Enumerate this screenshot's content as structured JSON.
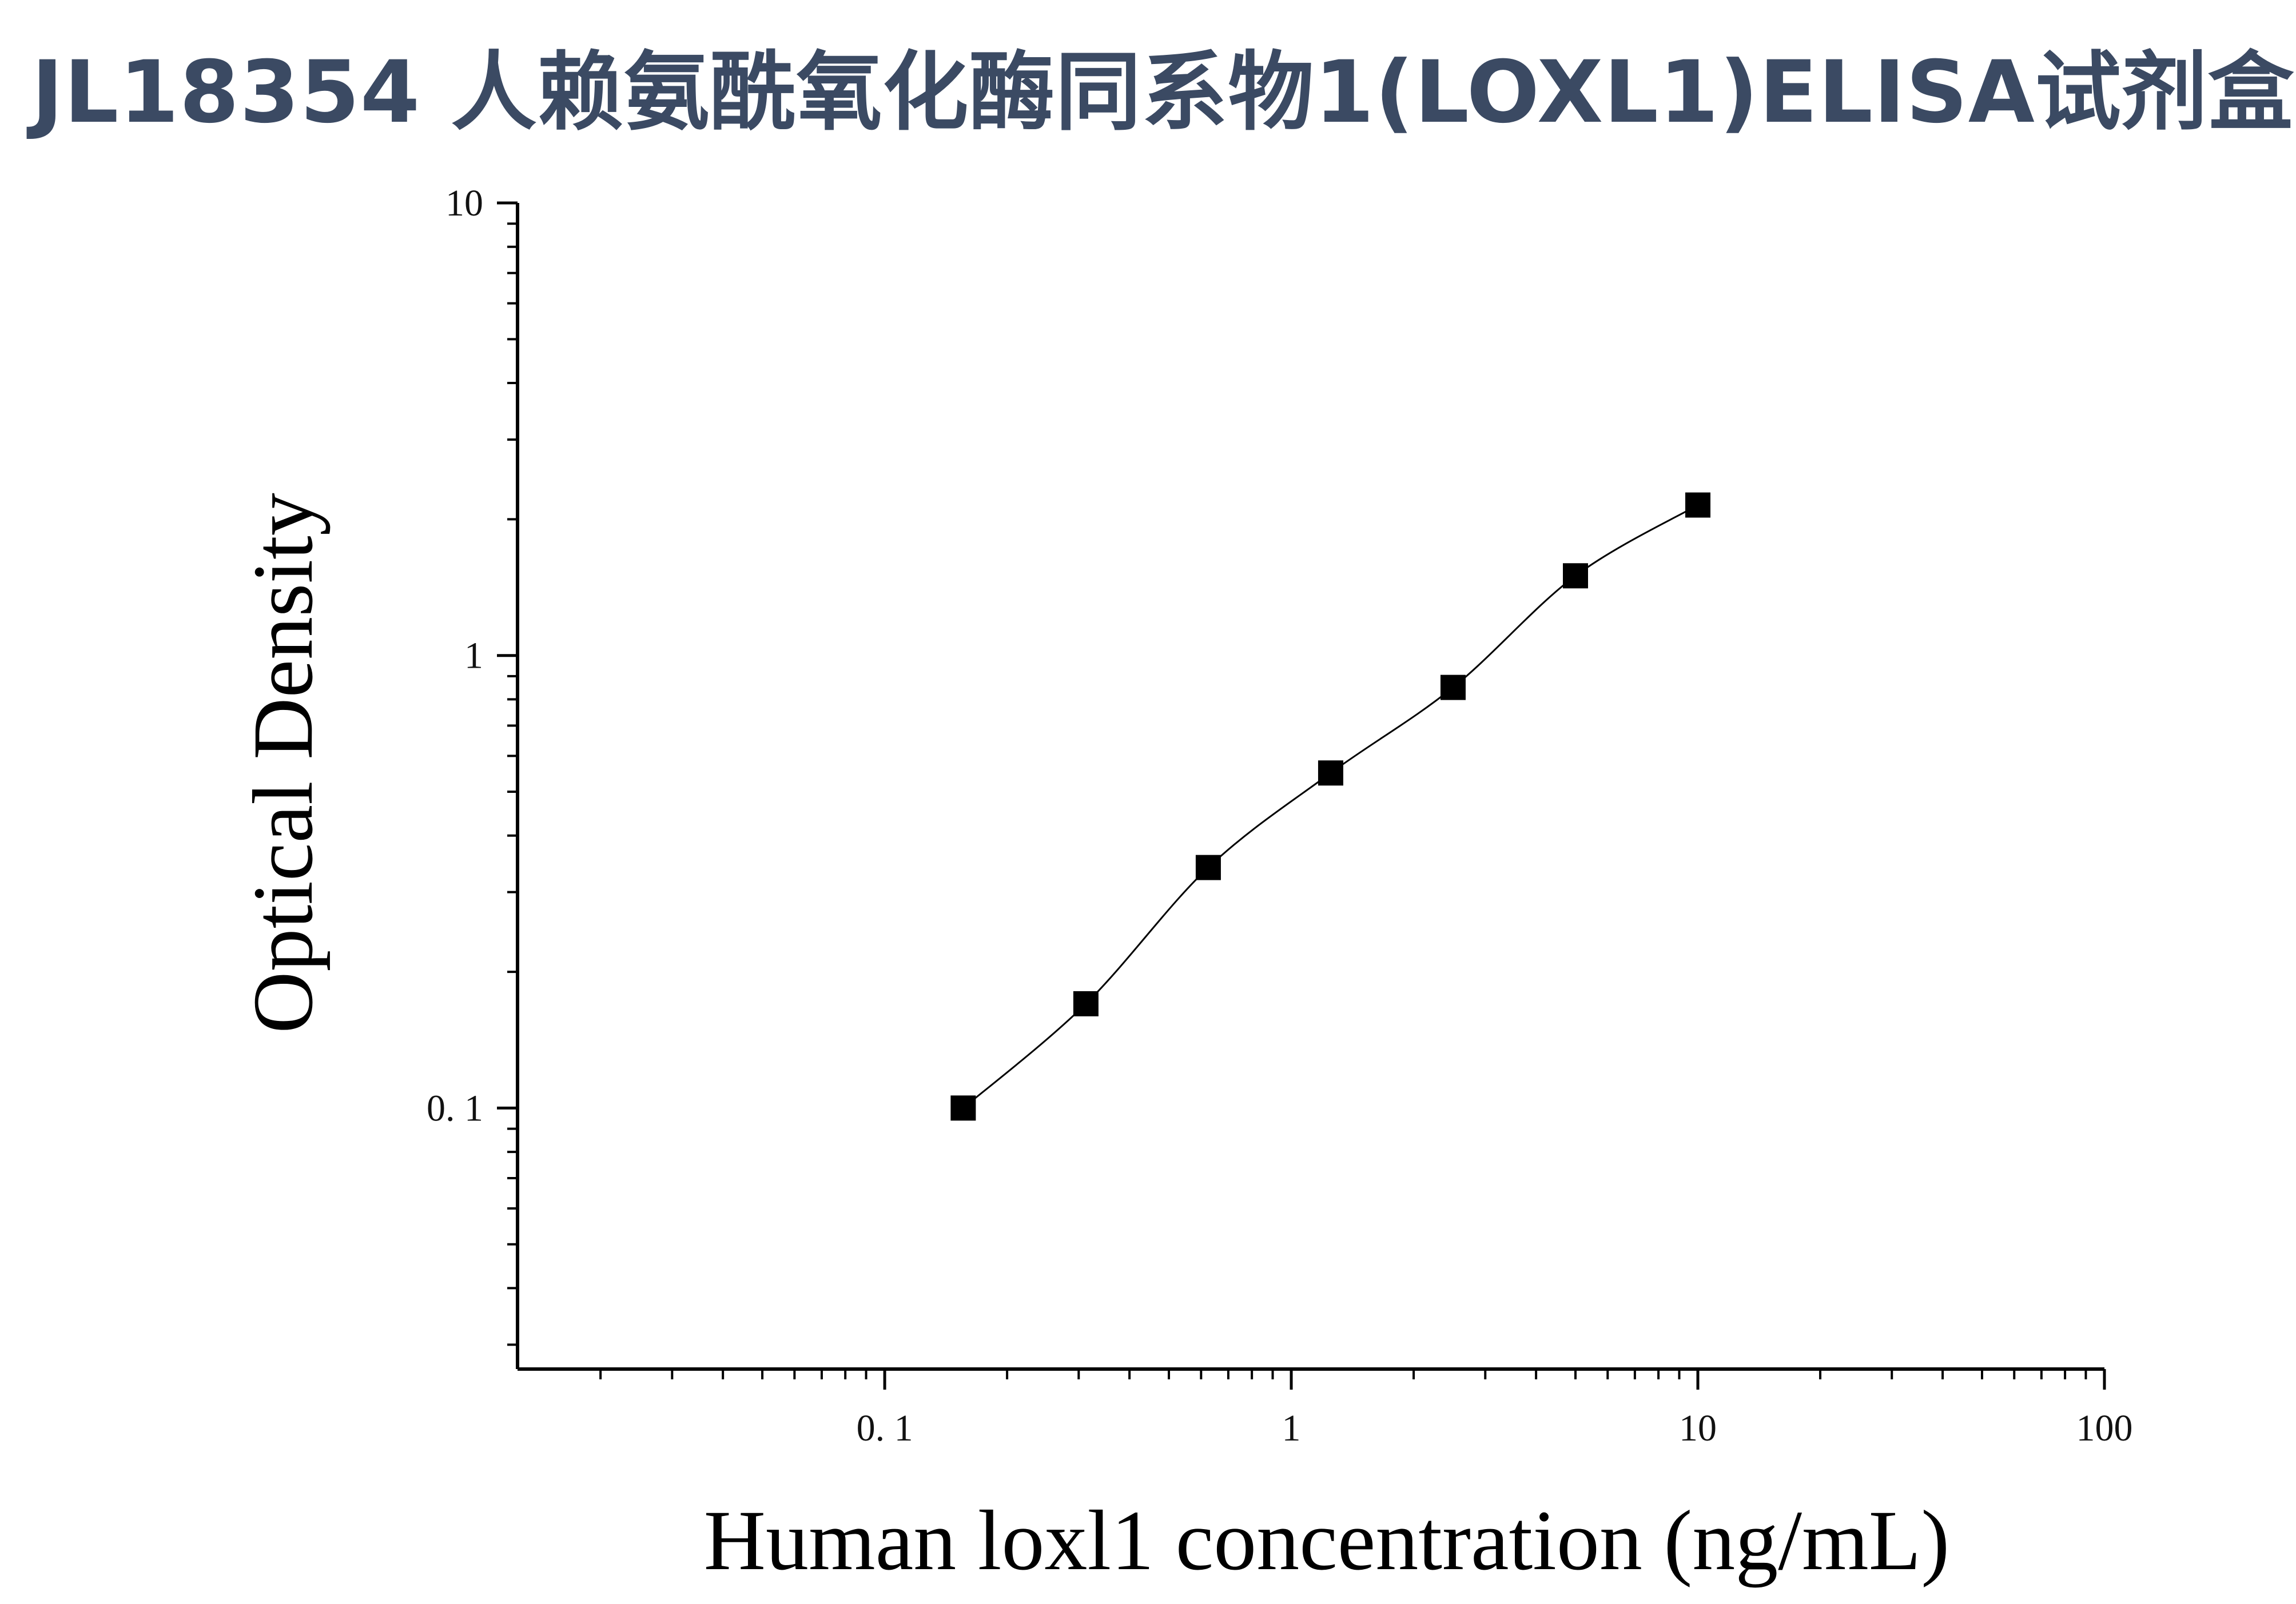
{
  "title": "JL18354 人赖氨酰氧化酶同系物1(LOXL1)ELISA试剂盒",
  "chart_data": {
    "type": "scatter",
    "xlabel": "Human loxl1 concentration (ng/mL)",
    "ylabel": "Optical Density",
    "x_scale": "log",
    "y_scale": "log",
    "xlim": [
      0.0125,
      100
    ],
    "ylim": [
      0.0265,
      10
    ],
    "x_ticks": [
      {
        "value": 0.1,
        "label": "0. 1"
      },
      {
        "value": 1,
        "label": "1"
      },
      {
        "value": 10,
        "label": "10"
      },
      {
        "value": 100,
        "label": "100"
      }
    ],
    "y_ticks": [
      {
        "value": 0.1,
        "label": "0. 1"
      },
      {
        "value": 1,
        "label": "1"
      },
      {
        "value": 10,
        "label": "10"
      }
    ],
    "grid": false,
    "series": [
      {
        "marker": "square",
        "color": "#000000",
        "x": [
          0.156,
          0.3125,
          0.625,
          1.25,
          2.5,
          5,
          10
        ],
        "y": [
          0.1,
          0.17,
          0.34,
          0.55,
          0.85,
          1.5,
          2.15
        ]
      }
    ]
  }
}
